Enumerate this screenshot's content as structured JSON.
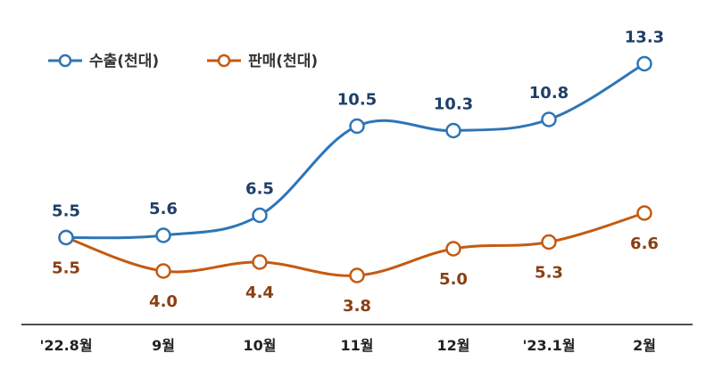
{
  "chart_data": {
    "type": "line",
    "categories": [
      "'22.8월",
      "9월",
      "10월",
      "11월",
      "12월",
      "'23.1월",
      "2월"
    ],
    "series": [
      {
        "name": "수출(천대)",
        "color": "#2e75b6",
        "values": [
          5.5,
          5.6,
          6.5,
          10.5,
          10.3,
          10.8,
          13.3
        ]
      },
      {
        "name": "판매(천대)",
        "color": "#c55a11",
        "values": [
          5.5,
          4.0,
          4.4,
          3.8,
          5.0,
          5.3,
          6.6
        ]
      }
    ],
    "label_colors": {
      "export": "#1f3f68",
      "sales": "#8a3f12"
    },
    "legend_position": "top-left",
    "grid": false,
    "ylim": [
      0,
      14
    ]
  }
}
